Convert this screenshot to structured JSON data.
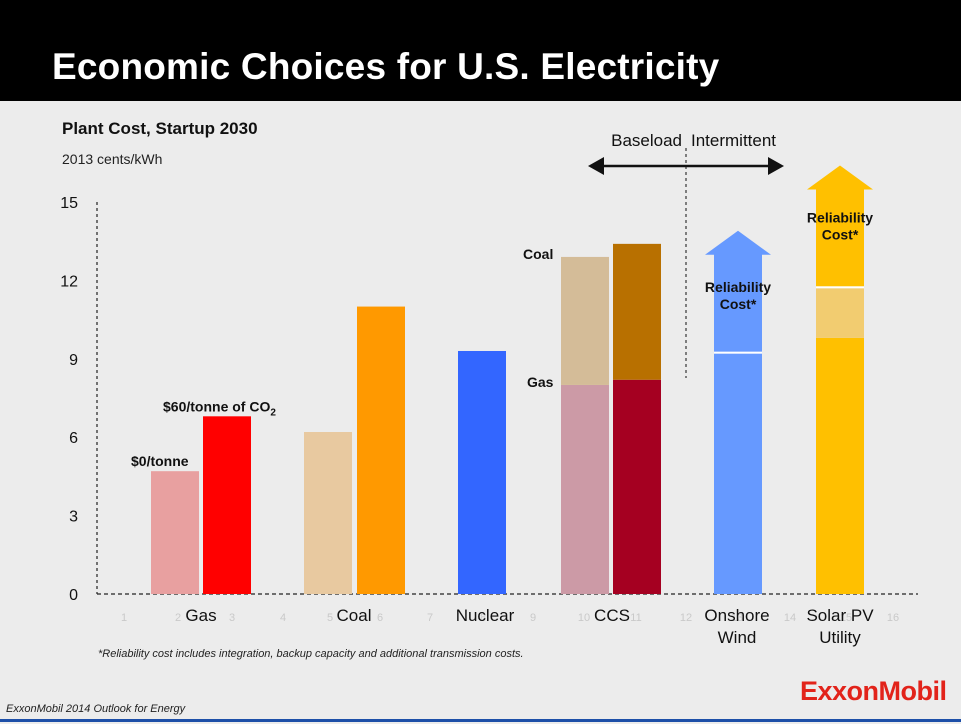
{
  "header": {
    "title": "Economic Choices for U.S. Electricity"
  },
  "footer": {
    "footnote": "*Reliability cost includes integration, backup capacity and additional transmission costs.",
    "source": "ExxonMobil 2014 Outlook for Energy",
    "logo": "ExxonMobil"
  },
  "chart_data": {
    "type": "bar",
    "title": "Plant Cost, Startup 2030",
    "ylabel": "2013 cents/kWh",
    "ylim": [
      0,
      15
    ],
    "yticks": [
      "0",
      "3",
      "6",
      "9",
      "12",
      "15"
    ],
    "categories": [
      "Gas",
      "Coal",
      "Nuclear",
      "CCS",
      "Onshore Wind",
      "Solar PV Utility"
    ],
    "category_lines": [
      [
        "Gas"
      ],
      [
        "Coal"
      ],
      [
        "Nuclear"
      ],
      [
        "CCS"
      ],
      [
        "Onshore",
        "Wind"
      ],
      [
        "Solar PV",
        "Utility"
      ]
    ],
    "faint_axis_numbers": [
      "1",
      "2",
      "3",
      "4",
      "5",
      "6",
      "7",
      "8",
      "9",
      "10",
      "11",
      "12",
      "13",
      "14",
      "15",
      "16"
    ],
    "bars": [
      {
        "category": "Gas",
        "label": "$0/tonne",
        "value": 4.7,
        "color": "#e8a0a0"
      },
      {
        "category": "Gas",
        "label": "$60/tonne of CO2",
        "value": 6.8,
        "color": "#ff0000"
      },
      {
        "category": "Coal",
        "label": "",
        "value": 6.2,
        "color": "#e8c9a0"
      },
      {
        "category": "Coal",
        "label": "",
        "value": 11.0,
        "color": "#ff9900"
      },
      {
        "category": "Nuclear",
        "label": "",
        "value": 9.3,
        "color": "#3366ff"
      },
      {
        "category": "CCS",
        "segments": [
          {
            "label": "Gas",
            "value": 8.0,
            "color": "#cc9aa6"
          },
          {
            "label": "Coal",
            "value": 4.9,
            "color": "#d4bc98"
          }
        ],
        "total": 12.9
      },
      {
        "category": "CCS",
        "segments": [
          {
            "label": "Gas",
            "value": 8.2,
            "color": "#a50021"
          },
          {
            "label": "Coal",
            "value": 5.2,
            "color": "#b87000"
          }
        ],
        "total": 13.4
      },
      {
        "category": "Onshore Wind",
        "base": 9.2,
        "base_color": "#6699ff",
        "reliability_cost_top": 13.9,
        "arrow_color": "#6699ff",
        "reliability_label": [
          "Reliability",
          "Cost*"
        ]
      },
      {
        "category": "Solar PV Utility",
        "base": 9.8,
        "base_color": "#ffc000",
        "mid_top": 11.7,
        "mid_color": "#f2cc70",
        "reliability_cost_top": 16.4,
        "arrow_color": "#ffc000",
        "reliability_label": [
          "Reliability",
          "Cost*"
        ]
      }
    ],
    "ccs_segment_labels": {
      "coal": "Coal",
      "gas": "Gas"
    },
    "annotations": {
      "baseload": "Baseload",
      "intermittent": "Intermittent"
    },
    "grid": false,
    "legend": "none"
  }
}
